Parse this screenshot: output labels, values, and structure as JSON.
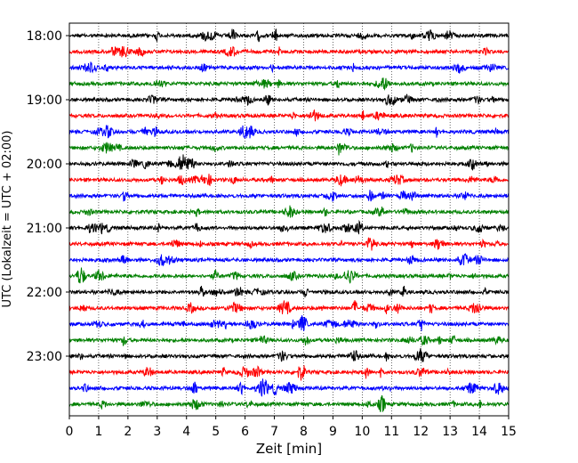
{
  "chart_data": {
    "type": "line",
    "subtype": "helicorder",
    "xlabel": "Zeit  [min]",
    "ylabel": "UTC (Lokalzeit = UTC + 02:00)",
    "xlim": [
      0,
      15
    ],
    "x_ticks": [
      "0",
      "1",
      "2",
      "3",
      "4",
      "5",
      "6",
      "7",
      "8",
      "9",
      "10",
      "11",
      "12",
      "13",
      "14",
      "15"
    ],
    "vertical_grid": "dotted, every 1 min",
    "traces_per_hour": 4,
    "minutes_per_trace": 15,
    "y_tick_labels": [
      "18:00",
      "19:00",
      "20:00",
      "21:00",
      "22:00",
      "23:00"
    ],
    "trace_colors": [
      "#000000",
      "#ff0000",
      "#0000ff",
      "#008000"
    ],
    "trace_count": 24
  }
}
